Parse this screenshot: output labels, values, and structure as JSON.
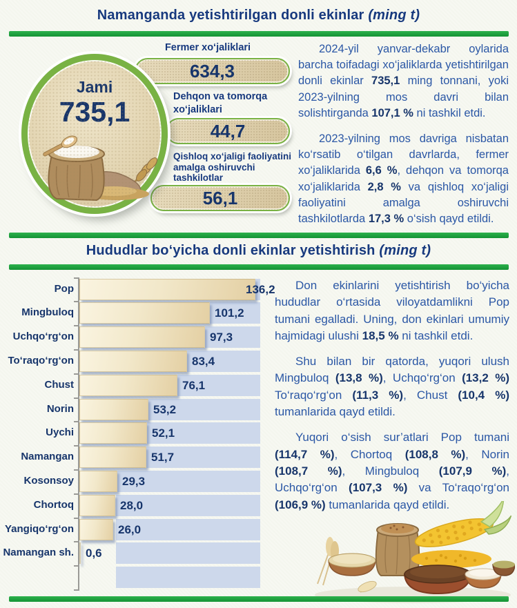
{
  "page": {
    "background": "#f4f6ee",
    "accent_green": "#1fa23c",
    "navy": "#17397e",
    "body_blue": "#2b57a5",
    "plot_band_blue": "#cdd8eb",
    "bar_beige": "#e9d9b4"
  },
  "section1": {
    "title": {
      "main": "Namanganda yetishtirilgan donli ekinlar",
      "unit": "(ming t)"
    },
    "total": {
      "label": "Jami"
    },
    "labels": {
      "item1": [
        "Fermer xo‘jaliklari"
      ],
      "item2": [
        "Dehqon va tomorqa",
        "xo‘jaliklari"
      ],
      "item3": [
        "Qishloq xo‘jaligi faoliyatini",
        "amalga oshiruvchi",
        "tashkilotlar"
      ]
    },
    "paragraphs": [
      [
        [
          "2024-yil yanvar-dekabr oylarida barcha toifadagi xo‘jaliklarda yetishtirilgan donli ekinlar ",
          0
        ],
        [
          "735,1",
          1
        ],
        [
          " ming tonnani, yoki 2023-yilning mos davri bilan solishtirganda ",
          0
        ],
        [
          "107,1 %",
          1
        ],
        [
          " ni tashkil etdi.",
          0
        ]
      ],
      [
        [
          "2023-yilning mos davriga nisbatan ko‘rsatib o‘tilgan davrlarda, fermer xo‘jaliklarida ",
          0
        ],
        [
          "6,6 %",
          1
        ],
        [
          ", dehqon va tomorqa xo‘jaliklarida ",
          0
        ],
        [
          "2,8 %",
          1
        ],
        [
          " va qishloq xo‘jaligi faoliyatini amalga oshiruvchi tashkilotlarda ",
          0
        ],
        [
          "17,3 %",
          1
        ],
        [
          " o‘sish qayd etildi.",
          0
        ]
      ]
    ]
  },
  "section2": {
    "title": {
      "main": "Hududlar bo‘yicha donli ekinlar yetishtirish",
      "unit": "(ming t)"
    },
    "paragraphs": [
      [
        [
          "Don ekinlarini yetishtirish bo‘yicha hududlar o‘rtasida viloyatdamlikni Pop tumani egalladi. Uning, don ekinlari umumiy hajmidagi ulushi ",
          0
        ],
        [
          "18,5 %",
          1
        ],
        [
          " ni tashkil etdi.",
          0
        ]
      ],
      [
        [
          "Shu bilan bir qatorda, yuqori ulush Mingbuloq ",
          0
        ],
        [
          "(13,8 %)",
          1
        ],
        [
          ", Uchqo‘rg‘on ",
          0
        ],
        [
          "(13,2 %)",
          1
        ],
        [
          " To‘raqo‘rg‘on ",
          0
        ],
        [
          "(11,3 %)",
          1
        ],
        [
          ", Chust ",
          0
        ],
        [
          "(10,4 %)",
          1
        ],
        [
          " tumanlarida qayd etildi.",
          0
        ]
      ],
      [
        [
          "Yuqori o‘sish sur’atlari Pop tumani ",
          0
        ],
        [
          "(114,7 %)",
          1
        ],
        [
          ", Chortoq ",
          0
        ],
        [
          "(108,8 %)",
          1
        ],
        [
          ", Norin ",
          0
        ],
        [
          "(108,7 %)",
          1
        ],
        [
          ", Mingbuloq ",
          0
        ],
        [
          "(107,9 %)",
          1
        ],
        [
          ", Uchqo‘rg‘on ",
          0
        ],
        [
          "(107,3 %)",
          1
        ],
        [
          " va To‘raqo‘rg‘on ",
          0
        ],
        [
          "(106,9 %)",
          1
        ],
        [
          " tumanlarida qayd etildi.",
          0
        ]
      ]
    ]
  },
  "chart_data": [
    {
      "type": "bar",
      "title": "Namanganda yetishtirilgan donli ekinlar (ming t)",
      "categories": [
        "Jami",
        "Fermer xo‘jaliklari",
        "Dehqon va tomorqa xo‘jaliklari",
        "Qishloq xo‘jaligi faoliyatini amalga oshiruvchi tashkilotlar"
      ],
      "values": [
        735.1,
        634.3,
        44.7,
        56.1
      ],
      "value_labels": [
        "735,1",
        "634,3",
        "44,7",
        "56,1"
      ],
      "unit": "ming t"
    },
    {
      "type": "bar",
      "orientation": "horizontal",
      "title": "Hududlar bo‘yicha donli ekinlar yetishtirish (ming t)",
      "categories": [
        "Pop",
        "Mingbuloq",
        "Uchqo‘rg‘on",
        "To‘raqo‘rg‘on",
        "Chust",
        "Norin",
        "Uychi",
        "Namangan",
        "Kosonsoy",
        "Chortoq",
        "Yangiqo‘rg‘on",
        "Namangan sh."
      ],
      "values": [
        136.2,
        101.2,
        97.3,
        83.4,
        76.1,
        53.2,
        52.1,
        51.7,
        29.3,
        28.0,
        26.0,
        0.6
      ],
      "value_labels": [
        "136,2",
        "101,2",
        "97,3",
        "83,4",
        "76,1",
        "53,2",
        "52,1",
        "51,7",
        "29,3",
        "28,0",
        "26,0",
        "0,6"
      ],
      "xlim": [
        0,
        140
      ],
      "unit": "ming t",
      "grid": false,
      "legend": "none"
    }
  ]
}
